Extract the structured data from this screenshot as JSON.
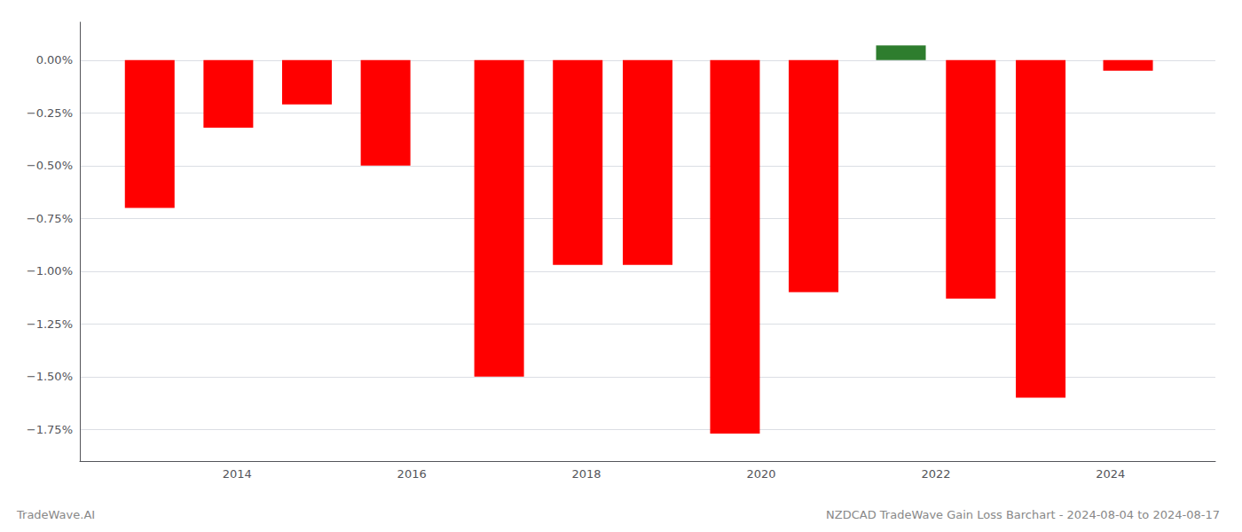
{
  "chart_data": {
    "type": "bar",
    "title": "NZDCAD TradeWave Gain Loss Barchart - 2024-08-04 to 2024-08-17",
    "annotations": [
      "TradeWave.AI"
    ],
    "x": [
      2013.0,
      2013.9,
      2014.8,
      2015.7,
      2017.0,
      2017.9,
      2018.7,
      2019.7,
      2020.6,
      2021.6,
      2022.4,
      2023.2,
      2024.2
    ],
    "values": [
      -0.7,
      -0.32,
      -0.21,
      -0.5,
      -1.5,
      -0.97,
      -0.97,
      -1.77,
      -1.1,
      0.07,
      -1.13,
      -1.6,
      -0.05
    ],
    "colors": [
      "#ff0000",
      "#ff0000",
      "#ff0000",
      "#ff0000",
      "#ff0000",
      "#ff0000",
      "#ff0000",
      "#ff0000",
      "#ff0000",
      "#2e7d2e",
      "#ff0000",
      "#ff0000",
      "#ff0000"
    ],
    "xlim": [
      2012.2,
      2025.2
    ],
    "xticks": [
      2014,
      2016,
      2018,
      2020,
      2022,
      2024
    ],
    "ylim": [
      -1.9,
      0.18
    ],
    "yticks": [
      {
        "value": 0.0,
        "label": "0.00%"
      },
      {
        "value": -0.25,
        "label": "−0.25%"
      },
      {
        "value": -0.5,
        "label": "−0.50%"
      },
      {
        "value": -0.75,
        "label": "−0.75%"
      },
      {
        "value": -1.0,
        "label": "−1.00%"
      },
      {
        "value": -1.25,
        "label": "−1.25%"
      },
      {
        "value": -1.5,
        "label": "−1.50%"
      },
      {
        "value": -1.75,
        "label": "−1.75%"
      }
    ],
    "grid": true
  }
}
